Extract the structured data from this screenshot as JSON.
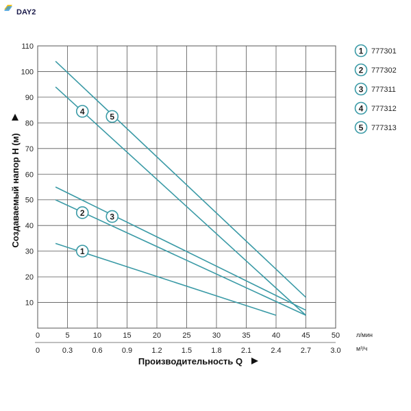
{
  "brand": {
    "logo_text": "DAY2"
  },
  "colors": {
    "line": "#3a9aa6",
    "marker_stroke": "#3a9aa6",
    "grid": "#555555"
  },
  "chart_data": {
    "type": "line",
    "title": "",
    "xlabel": "Производительность Q",
    "ylabel": "Создаваемый напор H (м)",
    "x_unit": "л/мин",
    "x2_unit": "м³/ч",
    "xlim": [
      0,
      50
    ],
    "ylim": [
      0,
      110
    ],
    "x_ticks": [
      "0",
      "5",
      "10",
      "15",
      "20",
      "25",
      "30",
      "35",
      "40",
      "45",
      "50"
    ],
    "x2_ticks": [
      "0",
      "0.3",
      "0.6",
      "0.9",
      "1.2",
      "1.5",
      "1.8",
      "2.1",
      "2.4",
      "2.7",
      "3.0"
    ],
    "y_ticks": [
      "10",
      "20",
      "30",
      "40",
      "50",
      "60",
      "70",
      "80",
      "90",
      "100",
      "110"
    ],
    "grid": true,
    "legend_position": "right",
    "series": [
      {
        "name": "777301",
        "marker": "1",
        "x": [
          3,
          40
        ],
        "y": [
          33,
          5
        ],
        "marker_at": [
          7.5,
          30
        ]
      },
      {
        "name": "777302",
        "marker": "2",
        "x": [
          3,
          45
        ],
        "y": [
          50,
          5
        ],
        "marker_at": [
          7.5,
          45
        ]
      },
      {
        "name": "777311",
        "marker": "3",
        "x": [
          3,
          45
        ],
        "y": [
          55,
          7
        ],
        "marker_at": [
          12.5,
          43.5
        ]
      },
      {
        "name": "777312",
        "marker": "4",
        "x": [
          3,
          45
        ],
        "y": [
          94,
          5
        ],
        "marker_at": [
          7.5,
          84.5
        ]
      },
      {
        "name": "777313",
        "marker": "5",
        "x": [
          3,
          45
        ],
        "y": [
          104,
          12
        ],
        "marker_at": [
          12.5,
          82.5
        ]
      }
    ]
  }
}
